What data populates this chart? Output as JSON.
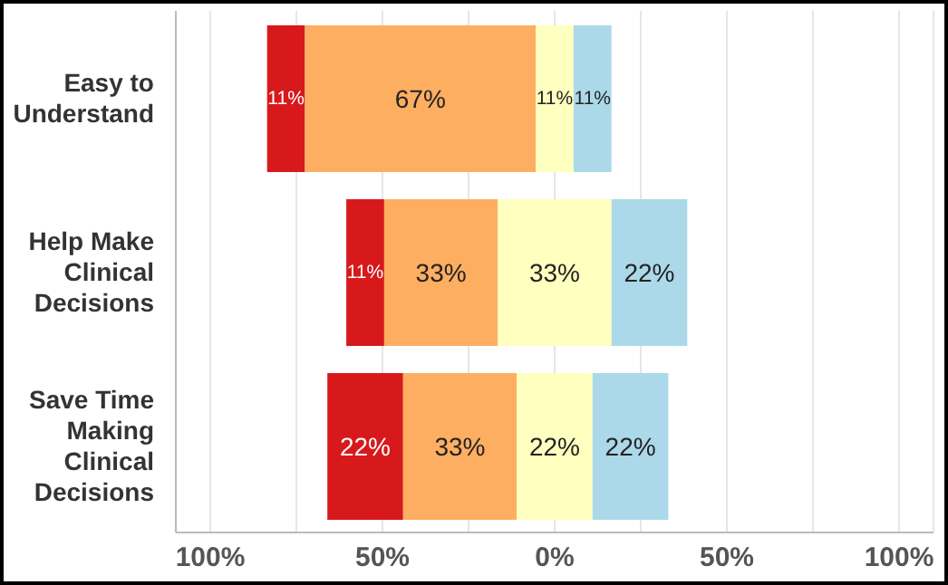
{
  "chart_data": {
    "type": "bar",
    "orientation": "horizontal",
    "categories": [
      "Easy to Understand",
      "Help Make Clinical Decisions",
      "Save Time Making Clinical Decisions"
    ],
    "series": [
      {
        "color": "#d7191c",
        "base": [
          -83.5,
          -60.5,
          -66
        ],
        "values": [
          11,
          11,
          22
        ],
        "value_labels": [
          "11%",
          "11%",
          "22%"
        ]
      },
      {
        "color": "#fdae61",
        "base": [
          -72.5,
          -49.5,
          -44
        ],
        "values": [
          67,
          33,
          33
        ],
        "value_labels": [
          "67%",
          "33%",
          "33%"
        ]
      },
      {
        "color": "#ffffbf",
        "base": [
          -5.5,
          -16.5,
          -11
        ],
        "values": [
          11,
          33,
          22
        ],
        "value_labels": [
          "11%",
          "33%",
          "22%"
        ]
      },
      {
        "color": "#abd9e9",
        "base": [
          5.5,
          16.5,
          11
        ],
        "values": [
          11,
          22,
          22
        ],
        "value_labels": [
          "11%",
          "22%",
          "22%"
        ]
      }
    ],
    "xlim": [
      -110,
      110
    ],
    "xticks": [
      {
        "value": -100,
        "label": "100%"
      },
      {
        "value": -75,
        "label": null
      },
      {
        "value": -50,
        "label": "50%"
      },
      {
        "value": -25,
        "label": null
      },
      {
        "value": 0,
        "label": "0%"
      },
      {
        "value": 25,
        "label": null
      },
      {
        "value": 50,
        "label": "50%"
      },
      {
        "value": 75,
        "label": null
      },
      {
        "value": 100,
        "label": "100%"
      }
    ],
    "grid": "x",
    "legend": false
  }
}
